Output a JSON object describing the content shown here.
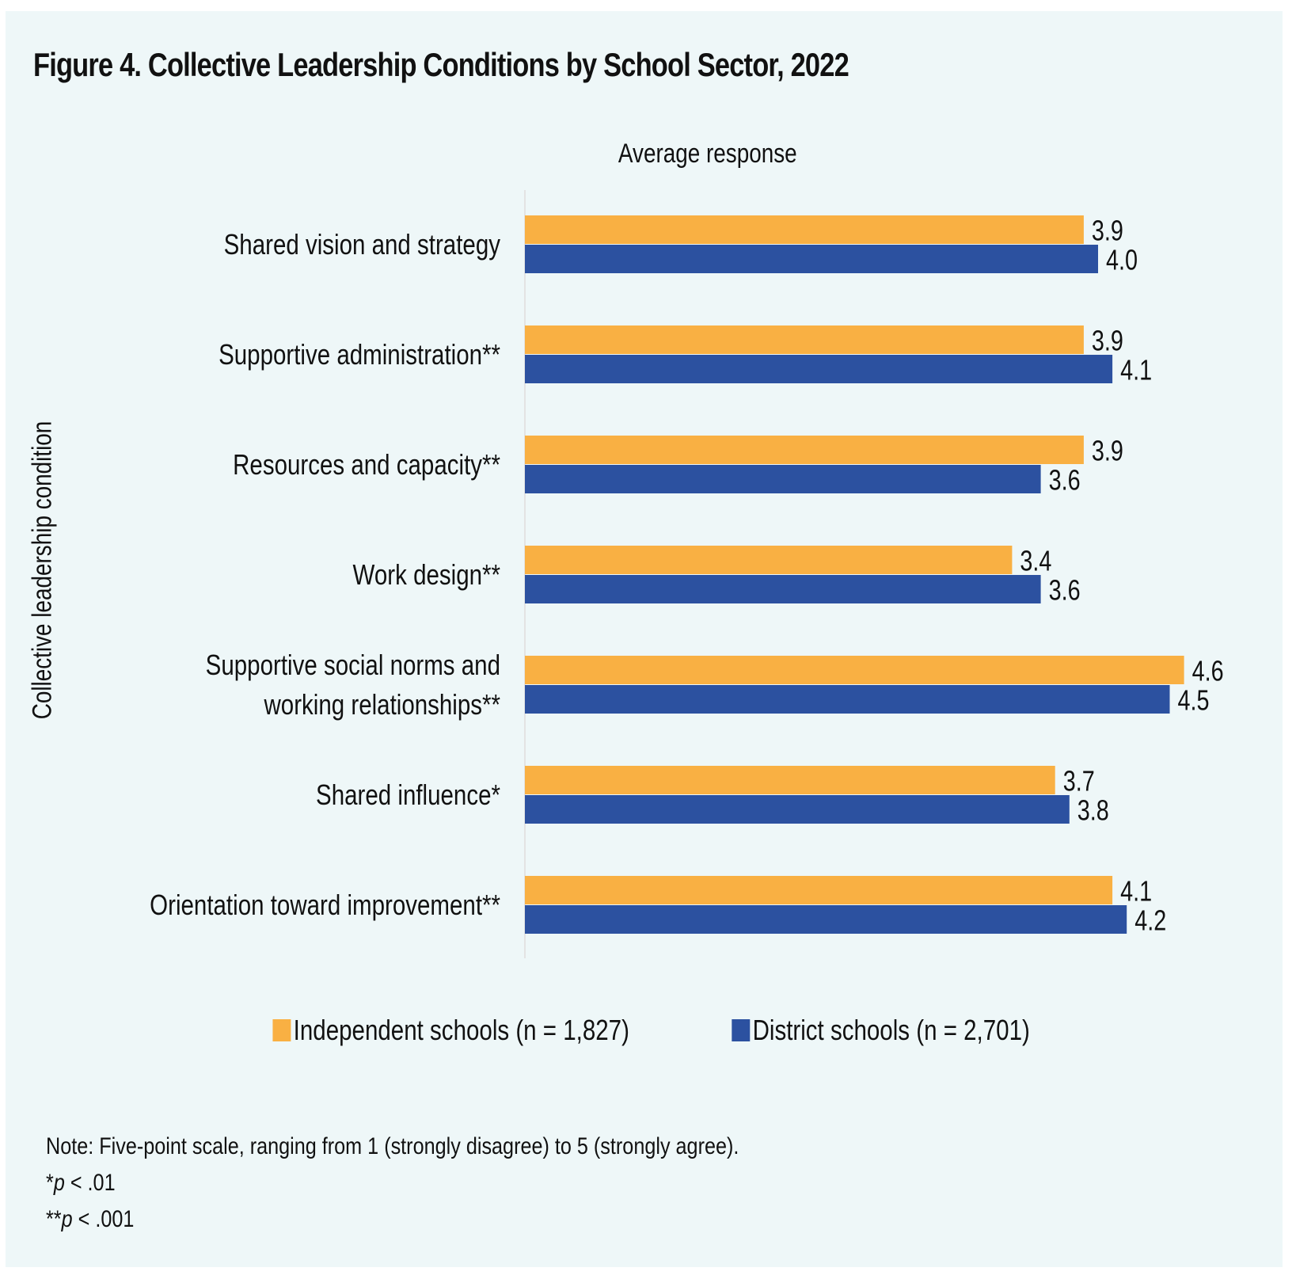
{
  "colors": {
    "independent": "#f9b043",
    "district": "#2c51a0",
    "background": "#eef7f8",
    "axis": "#e3e3e3"
  },
  "chart_data": {
    "type": "bar",
    "orientation": "horizontal",
    "title": "Figure 4. Collective Leadership Conditions by School Sector, 2022",
    "xlabel": "Average response",
    "ylabel": "Collective leadership condition",
    "xlim": [
      0,
      5
    ],
    "grid": false,
    "legend_position": "bottom",
    "categories": [
      "Shared vision and strategy",
      "Supportive administration**",
      "Resources and capacity**",
      "Work design**",
      "Supportive social norms and working relationships**",
      "Shared influence*",
      "Orientation toward improvement**"
    ],
    "category_lines": [
      [
        "Shared vision and strategy"
      ],
      [
        "Supportive administration**"
      ],
      [
        "Resources and capacity**"
      ],
      [
        "Work design**"
      ],
      [
        "Supportive social norms and",
        "working relationships**"
      ],
      [
        "Shared influence*"
      ],
      [
        "Orientation toward improvement**"
      ]
    ],
    "series": [
      {
        "name": "Independent schools (n = 1,827)",
        "values": [
          3.9,
          3.9,
          3.9,
          3.4,
          4.6,
          3.7,
          4.1
        ],
        "labels": [
          "3.9",
          "3.9",
          "3.9",
          "3.4",
          "4.6",
          "3.7",
          "4.1"
        ]
      },
      {
        "name": "District schools (n = 2,701)",
        "values": [
          4.0,
          4.1,
          3.6,
          3.6,
          4.5,
          3.8,
          4.2
        ],
        "labels": [
          "4.0",
          "4.1",
          "3.6",
          "3.6",
          "4.5",
          "3.8",
          "4.2"
        ]
      }
    ]
  },
  "notes": {
    "line1": "Note: Five-point scale, ranging from 1 (strongly disagree) to 5 (strongly agree).",
    "sig1_prefix": "*",
    "sig1_p": "p",
    "sig1_suffix": " < .01",
    "sig2_prefix": "**",
    "sig2_p": "p",
    "sig2_suffix": " < .001"
  }
}
